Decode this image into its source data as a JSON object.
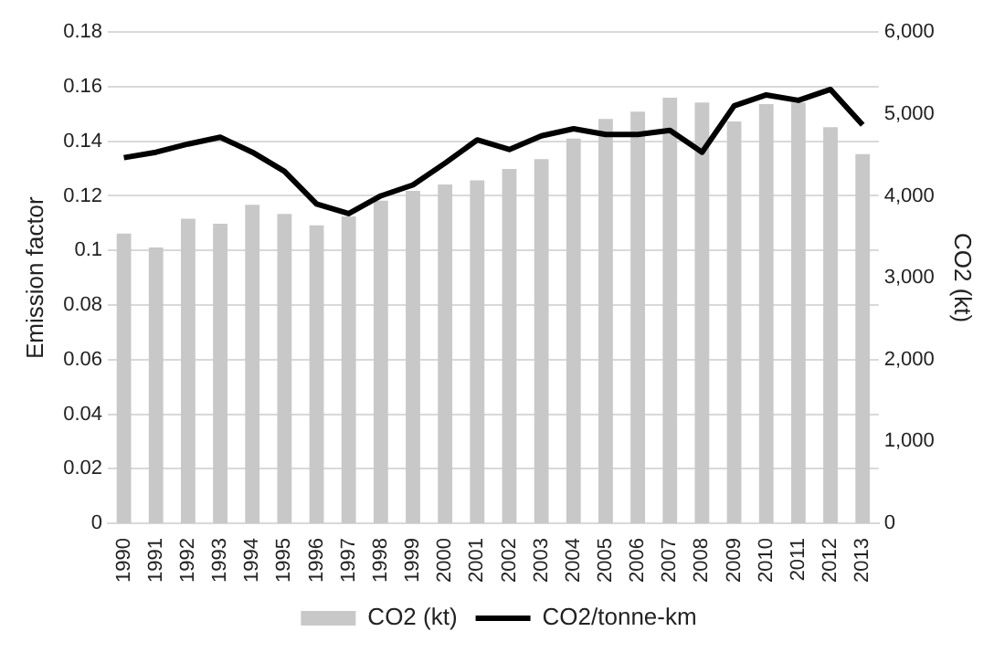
{
  "chart_data": {
    "type": "bar",
    "ylabel": "Emission factor",
    "y2label": "CO2 (kt)",
    "categories": [
      "1990",
      "1991",
      "1992",
      "1993",
      "1994",
      "1995",
      "1996",
      "1997",
      "1998",
      "1999",
      "2000",
      "2001",
      "2002",
      "2003",
      "2004",
      "2005",
      "2006",
      "2007",
      "2008",
      "2009",
      "2010",
      "2011",
      "2012",
      "2013"
    ],
    "series": [
      {
        "name": "CO2 (kt)",
        "axis": "y2",
        "color": "#c8c8c8",
        "values": [
          3540,
          3370,
          3720,
          3660,
          3890,
          3780,
          3640,
          3750,
          3940,
          4060,
          4140,
          4190,
          4330,
          4450,
          4700,
          4940,
          5030,
          5200,
          5140,
          4910,
          5120,
          5140,
          4840,
          4510
        ]
      },
      {
        "name": "CO2/tonne-km",
        "type": "line",
        "axis": "y",
        "color": "#000000",
        "marker": "none",
        "values": [
          0.134,
          0.136,
          0.139,
          0.1415,
          0.136,
          0.129,
          0.117,
          0.1135,
          0.12,
          0.124,
          0.132,
          0.1405,
          0.137,
          0.142,
          0.1446,
          0.1425,
          0.1425,
          0.144,
          0.136,
          0.153,
          0.157,
          0.155,
          0.159,
          0.146
        ]
      }
    ],
    "ylim": [
      0,
      0.18
    ],
    "yticks": [
      0,
      0.02,
      0.04,
      0.06,
      0.08,
      0.1,
      0.12,
      0.14,
      0.16,
      0.18
    ],
    "y2lim": [
      0,
      6000
    ],
    "y2ticks": [
      0,
      {
        "value": 1000,
        "label": "1,000"
      },
      {
        "value": 2000,
        "label": "2,000"
      },
      {
        "value": 3000,
        "label": "3,000"
      },
      {
        "value": 4000,
        "label": "4,000"
      },
      {
        "value": 5000,
        "label": "5,000"
      },
      {
        "value": 6000,
        "label": "6,000"
      }
    ],
    "grid": "y",
    "legend": "bottom"
  }
}
